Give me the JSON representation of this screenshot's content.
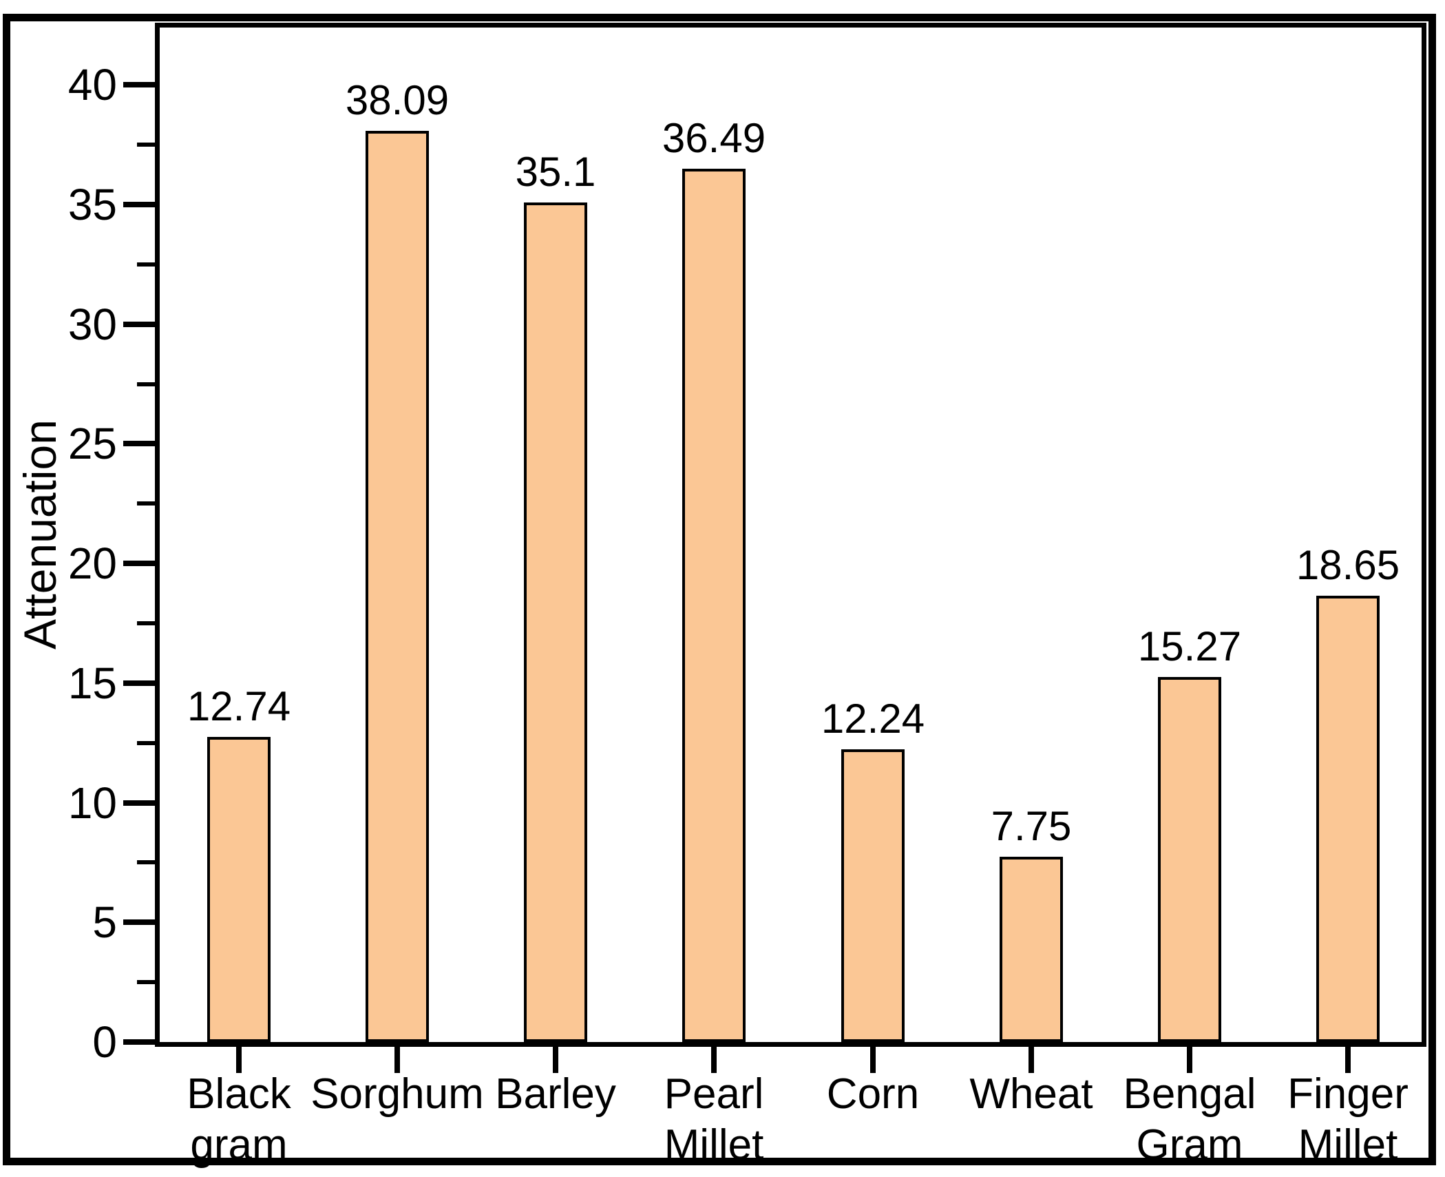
{
  "chart_data": {
    "type": "bar",
    "title": "",
    "xlabel": "",
    "ylabel": "Attenuation",
    "categories": [
      "Black gram",
      "Sorghum",
      "Barley",
      "Pearl Millet",
      "Corn",
      "Wheat",
      "Bengal Gram",
      "Finger Millet"
    ],
    "category_lines": [
      [
        "Black",
        "gram"
      ],
      [
        "Sorghum"
      ],
      [
        "Barley"
      ],
      [
        "Pearl",
        "Millet"
      ],
      [
        "Corn"
      ],
      [
        "Wheat"
      ],
      [
        "Bengal",
        "Gram"
      ],
      [
        "Finger",
        "Millet"
      ]
    ],
    "values": [
      12.74,
      38.09,
      35.1,
      36.49,
      12.24,
      7.75,
      15.27,
      18.65
    ],
    "value_labels": [
      "12.74",
      "38.09",
      "35.1",
      "36.49",
      "12.24",
      "7.75",
      "15.27",
      "18.65"
    ],
    "yticks": [
      0,
      5,
      10,
      15,
      20,
      25,
      30,
      35,
      40
    ],
    "ytick_labels": [
      "0",
      "5",
      "10",
      "15",
      "20",
      "25",
      "30",
      "35",
      "40"
    ],
    "minor_yticks": [
      2.5,
      7.5,
      12.5,
      17.5,
      22.5,
      27.5,
      32.5,
      37.5
    ],
    "ylim": [
      0,
      42.4
    ],
    "grid": false,
    "legend": null,
    "bar_color": "#FBC795",
    "bar_border_color": "#000000",
    "axis_color": "#000000",
    "text_color": "#000000",
    "background_color": "#FFFFFF"
  }
}
